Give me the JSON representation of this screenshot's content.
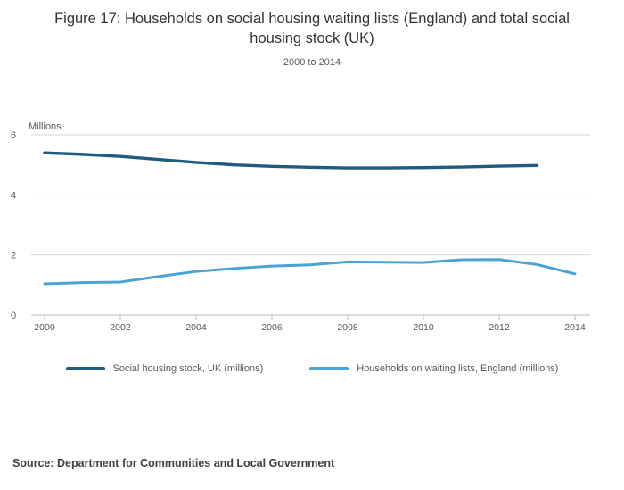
{
  "chart_data": {
    "type": "line",
    "title": "Figure 17: Households on social housing waiting lists (England) and total social housing stock (UK)",
    "subtitle": "2000 to 2014",
    "unit_label": "Millions",
    "xlabel": "",
    "ylabel": "Millions",
    "ylim": [
      0,
      6
    ],
    "y_ticks": [
      0,
      2,
      4,
      6
    ],
    "x_ticks": [
      2000,
      2002,
      2004,
      2006,
      2008,
      2010,
      2012,
      2014
    ],
    "xlim": [
      2000,
      2014
    ],
    "grid": "horizontal",
    "legend_position": "bottom",
    "series": [
      {
        "name": "Social housing stock, UK (millions)",
        "color": "#1f5b7f",
        "start_year": 2000,
        "x": [
          2000,
          2001,
          2002,
          2003,
          2004,
          2005,
          2006,
          2007,
          2008,
          2009,
          2010,
          2011,
          2012,
          2013
        ],
        "values": [
          5.4,
          5.35,
          5.28,
          5.18,
          5.08,
          5.0,
          4.95,
          4.92,
          4.9,
          4.9,
          4.91,
          4.93,
          4.96,
          4.98
        ]
      },
      {
        "name": "Households on waiting lists, England (millions)",
        "color": "#4ba3d3",
        "start_year": 2000,
        "x": [
          2000,
          2001,
          2002,
          2003,
          2004,
          2005,
          2006,
          2007,
          2008,
          2009,
          2010,
          2011,
          2012,
          2013,
          2014
        ],
        "values": [
          1.04,
          1.08,
          1.1,
          1.28,
          1.45,
          1.55,
          1.63,
          1.67,
          1.77,
          1.76,
          1.75,
          1.84,
          1.85,
          1.68,
          1.37
        ]
      }
    ],
    "source": "Source: Department for Communities and Local Government",
    "colors": {
      "grid": "#d6d6d6",
      "axis": "#b8b8b8",
      "tick_text": "#595959",
      "title_text": "#333333"
    }
  }
}
